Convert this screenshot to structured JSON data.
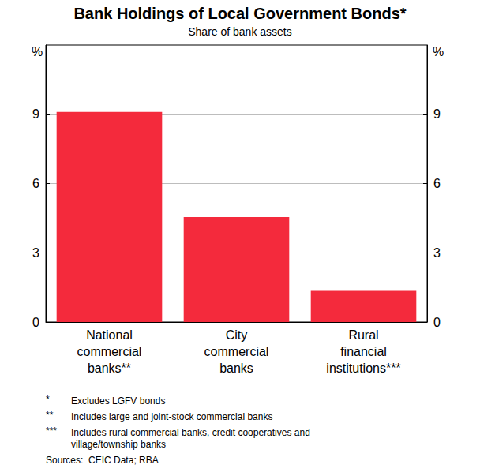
{
  "chart_data": {
    "type": "bar",
    "title": "Bank Holdings of Local Government Bonds*",
    "subtitle": "Share of bank assets",
    "y_unit": "%",
    "categories": [
      "National\ncommercial\nbanks**",
      "City\ncommercial\nbanks",
      "Rural\nfinancial\ninstitutions***"
    ],
    "values": [
      9.1,
      4.55,
      1.35
    ],
    "color": "#f42a3c",
    "ylim": [
      0,
      12
    ],
    "yticks": [
      0,
      3,
      6,
      9
    ],
    "grid": true,
    "notes": [
      {
        "marker": "*",
        "text": "Excludes LGFV bonds"
      },
      {
        "marker": "**",
        "text": "Includes large and joint-stock commercial banks"
      },
      {
        "marker": "***",
        "text": "Includes rural commercial banks, credit cooperatives and\nvillage/township banks"
      }
    ],
    "sources": "Sources:  CEIC Data; RBA"
  }
}
